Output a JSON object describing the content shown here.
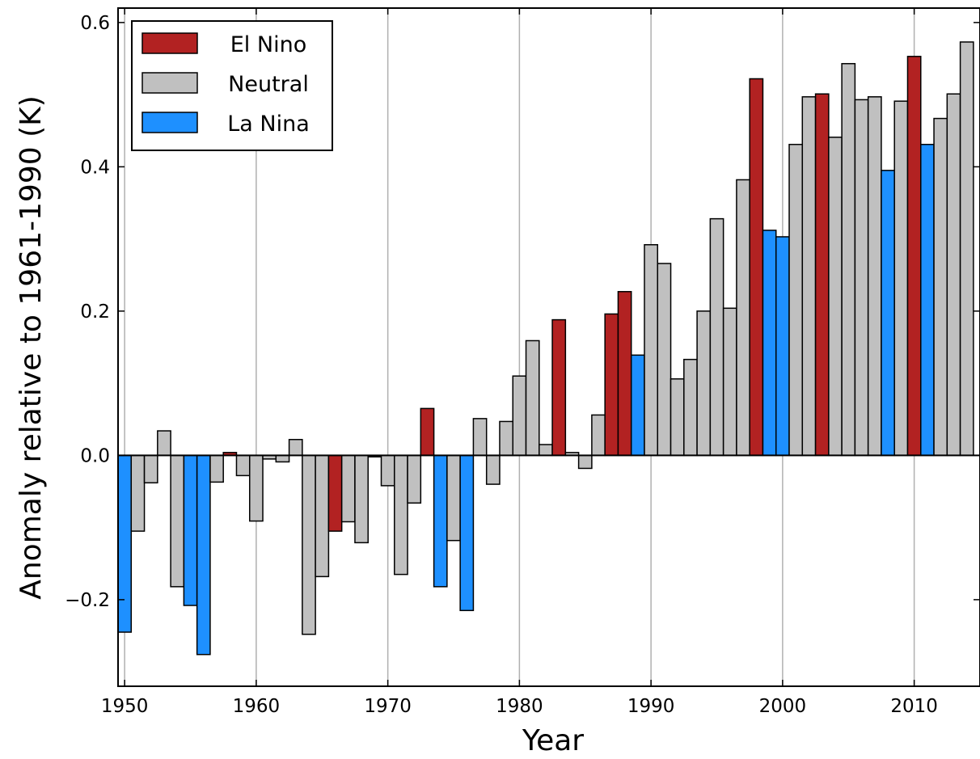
{
  "chart_data": {
    "type": "bar",
    "xlabel": "Year",
    "ylabel": "Anomaly relative to 1961-1990 (K)",
    "xlim": [
      1949.5,
      2015
    ],
    "ylim": [
      -0.32,
      0.62
    ],
    "grid": "vertical",
    "legend_position": "top-left",
    "x_ticks": [
      1950,
      1960,
      1970,
      1980,
      1990,
      2000,
      2010
    ],
    "x_tick_labels": [
      "1950",
      "1960",
      "1970",
      "1980",
      "1990",
      "2000",
      "2010"
    ],
    "y_ticks": [
      -0.2,
      0.0,
      0.2,
      0.4,
      0.6
    ],
    "y_tick_labels": [
      "−0.2",
      "0.0",
      "0.2",
      "0.4",
      "0.6"
    ],
    "colors": {
      "El Nino": "#b22222",
      "Neutral": "#c0c0c0",
      "La Nina": "#1e90ff"
    },
    "legend": [
      "El Nino",
      "Neutral",
      "La Nina"
    ],
    "years": [
      1950,
      1951,
      1952,
      1953,
      1954,
      1955,
      1956,
      1957,
      1958,
      1959,
      1960,
      1961,
      1962,
      1963,
      1964,
      1965,
      1966,
      1967,
      1968,
      1969,
      1970,
      1971,
      1972,
      1973,
      1974,
      1975,
      1976,
      1977,
      1978,
      1979,
      1980,
      1981,
      1982,
      1983,
      1984,
      1985,
      1986,
      1987,
      1988,
      1989,
      1990,
      1991,
      1992,
      1993,
      1994,
      1995,
      1996,
      1997,
      1998,
      1999,
      2000,
      2001,
      2002,
      2003,
      2004,
      2005,
      2006,
      2007,
      2008,
      2009,
      2010,
      2011,
      2012,
      2013,
      2014
    ],
    "values": [
      -0.245,
      -0.105,
      -0.038,
      0.034,
      -0.182,
      -0.208,
      -0.276,
      -0.037,
      0.004,
      -0.028,
      -0.091,
      -0.005,
      -0.009,
      0.022,
      -0.248,
      -0.168,
      -0.105,
      -0.092,
      -0.121,
      -0.002,
      -0.042,
      -0.165,
      -0.066,
      0.065,
      -0.182,
      -0.118,
      -0.215,
      0.051,
      -0.04,
      0.047,
      0.11,
      0.159,
      0.015,
      0.188,
      0.004,
      -0.018,
      0.056,
      0.196,
      0.227,
      0.139,
      0.292,
      0.266,
      0.106,
      0.133,
      0.2,
      0.328,
      0.204,
      0.382,
      0.522,
      0.312,
      0.303,
      0.431,
      0.497,
      0.501,
      0.441,
      0.543,
      0.493,
      0.497,
      0.395,
      0.491,
      0.553,
      0.431,
      0.467,
      0.501,
      0.573
    ],
    "categories": [
      "La Nina",
      "Neutral",
      "Neutral",
      "Neutral",
      "Neutral",
      "La Nina",
      "La Nina",
      "Neutral",
      "El Nino",
      "Neutral",
      "Neutral",
      "Neutral",
      "Neutral",
      "Neutral",
      "Neutral",
      "Neutral",
      "El Nino",
      "Neutral",
      "Neutral",
      "Neutral",
      "Neutral",
      "Neutral",
      "Neutral",
      "El Nino",
      "La Nina",
      "Neutral",
      "La Nina",
      "Neutral",
      "Neutral",
      "Neutral",
      "Neutral",
      "Neutral",
      "Neutral",
      "El Nino",
      "Neutral",
      "Neutral",
      "Neutral",
      "El Nino",
      "El Nino",
      "La Nina",
      "Neutral",
      "Neutral",
      "Neutral",
      "Neutral",
      "Neutral",
      "Neutral",
      "Neutral",
      "Neutral",
      "El Nino",
      "La Nina",
      "La Nina",
      "Neutral",
      "Neutral",
      "El Nino",
      "Neutral",
      "Neutral",
      "Neutral",
      "Neutral",
      "La Nina",
      "Neutral",
      "El Nino",
      "La Nina",
      "Neutral",
      "Neutral",
      "Neutral"
    ]
  }
}
